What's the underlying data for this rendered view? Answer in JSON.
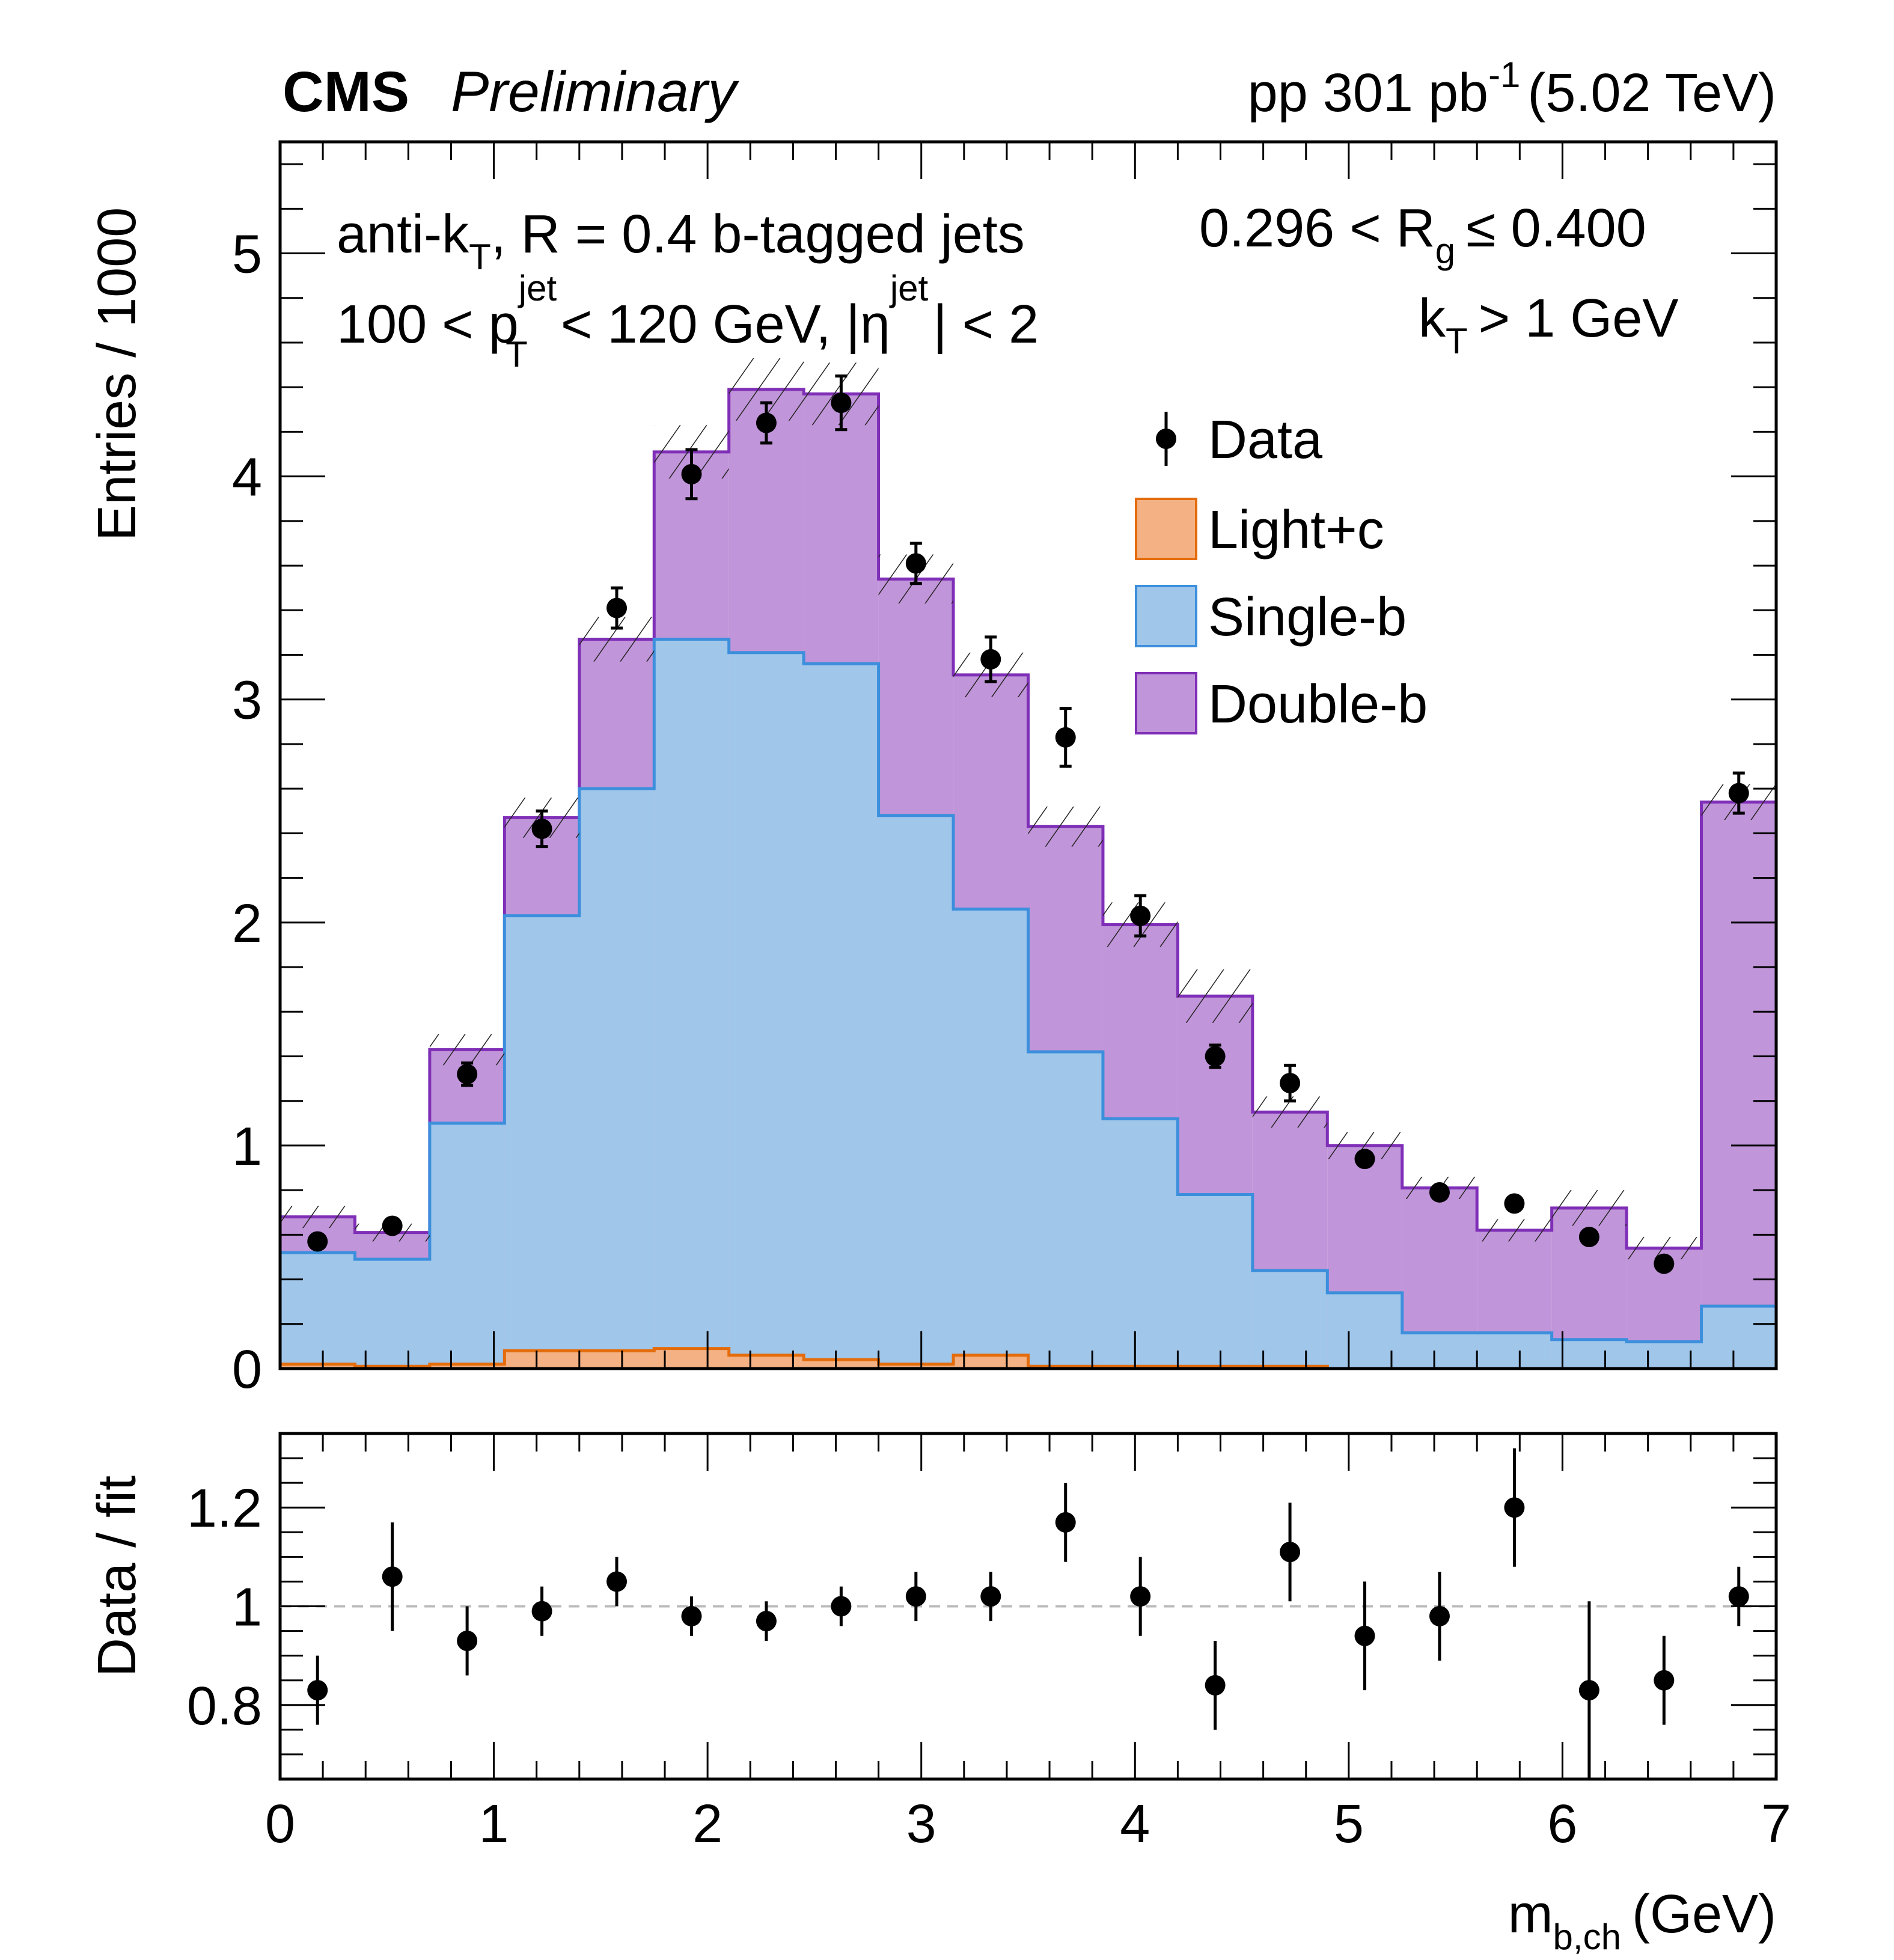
{
  "chart_data": {
    "type": "bar",
    "header": {
      "experiment": "CMS",
      "status": "Preliminary",
      "lumi_prefix": "pp 301 pb",
      "lumi_sup": "-1",
      "lumi_suffix": "(5.02 TeV)"
    },
    "annotations": {
      "line1_left": "anti-k",
      "line1_left_sub": "T",
      "line1_left_rest": ", R = 0.4 b-tagged jets",
      "line1_right": "0.296 < R",
      "line1_right_sub": "g",
      "line1_right_rest": "≤ 0.400",
      "line2_left_a": "100 < p",
      "line2_left_sup": "jet",
      "line2_left_sub": "T",
      "line2_left_b": "< 120 GeV, |η",
      "line2_left_sup2": "jet",
      "line2_left_c": "| < 2",
      "line2_right": "k",
      "line2_right_sub": "T",
      "line2_right_rest": "> 1 GeV"
    },
    "xlabel": "m",
    "xlabel_sub": "b,ch",
    "xlabel_rest": "(GeV)",
    "ylabel": "Entries / 1000",
    "ratio_ylabel": "Data / fit",
    "xlim": [
      0,
      7
    ],
    "ylim": [
      0,
      5.5
    ],
    "ratio_ylim": [
      0.65,
      1.35
    ],
    "xticks": [
      "0",
      "1",
      "2",
      "3",
      "4",
      "5",
      "6",
      "7"
    ],
    "yticks": [
      "0",
      "1",
      "2",
      "3",
      "4",
      "5"
    ],
    "ratio_yticks": [
      "0.8",
      "1",
      "1.2"
    ],
    "bin_edges": [
      0,
      0.35,
      0.7,
      1.05,
      1.4,
      1.75,
      2.1,
      2.45,
      2.8,
      3.15,
      3.5,
      3.85,
      4.2,
      4.55,
      4.9,
      5.25,
      5.6,
      5.95,
      6.3,
      6.65,
      7.0
    ],
    "series": [
      {
        "name": "Light+c",
        "color": "#f4b183",
        "edge": "#e46c0a",
        "values": [
          0.02,
          0.01,
          0.02,
          0.08,
          0.08,
          0.09,
          0.06,
          0.04,
          0.02,
          0.06,
          0.01,
          0.01,
          0.01,
          0.01,
          0,
          0,
          0,
          0,
          0,
          0
        ]
      },
      {
        "name": "Single-b",
        "color": "#a0c6ea",
        "edge": "#3c8fdc",
        "stack_top": [
          0.52,
          0.49,
          1.1,
          2.03,
          2.6,
          3.27,
          3.21,
          3.16,
          2.48,
          2.06,
          1.42,
          1.12,
          0.78,
          0.44,
          0.34,
          0.16,
          0.16,
          0.13,
          0.12,
          0.28
        ]
      },
      {
        "name": "Double-b",
        "color": "#c195d9",
        "edge": "#7f2fb7",
        "stack_top": [
          0.68,
          0.61,
          1.43,
          2.47,
          3.27,
          4.11,
          4.39,
          4.37,
          3.54,
          3.11,
          2.43,
          1.99,
          1.67,
          1.15,
          1.0,
          0.81,
          0.62,
          0.72,
          0.54,
          2.54
        ]
      }
    ],
    "uncertainty": [
      0.05,
      0.04,
      0.07,
      0.09,
      0.1,
      0.12,
      0.14,
      0.14,
      0.11,
      0.1,
      0.09,
      0.1,
      0.12,
      0.07,
      0.06,
      0.05,
      0.05,
      0.08,
      0.05,
      0.08
    ],
    "data": {
      "name": "Data",
      "values": [
        0.57,
        0.64,
        1.32,
        2.42,
        3.41,
        4.01,
        4.24,
        4.33,
        3.61,
        3.18,
        2.83,
        2.03,
        1.4,
        1.28,
        0.94,
        0.79,
        0.74,
        0.59,
        0.47,
        2.58
      ],
      "errors": [
        0.03,
        0.03,
        0.05,
        0.08,
        0.09,
        0.11,
        0.09,
        0.12,
        0.09,
        0.1,
        0.13,
        0.09,
        0.05,
        0.08,
        0.03,
        0.03,
        0.03,
        0.03,
        0.03,
        0.09
      ]
    },
    "ratio": {
      "values": [
        0.83,
        1.06,
        0.93,
        0.99,
        1.05,
        0.98,
        0.97,
        1.0,
        1.02,
        1.02,
        1.17,
        1.02,
        0.84,
        1.11,
        0.94,
        0.98,
        1.2,
        0.83,
        0.85,
        1.02
      ],
      "errors": [
        0.07,
        0.11,
        0.07,
        0.05,
        0.05,
        0.04,
        0.04,
        0.04,
        0.05,
        0.05,
        0.08,
        0.08,
        0.09,
        0.1,
        0.11,
        0.09,
        0.12,
        0.18,
        0.09,
        0.06
      ]
    },
    "legend": [
      "Data",
      "Light+c",
      "Single-b",
      "Double-b"
    ],
    "legend_position": "top-right"
  }
}
